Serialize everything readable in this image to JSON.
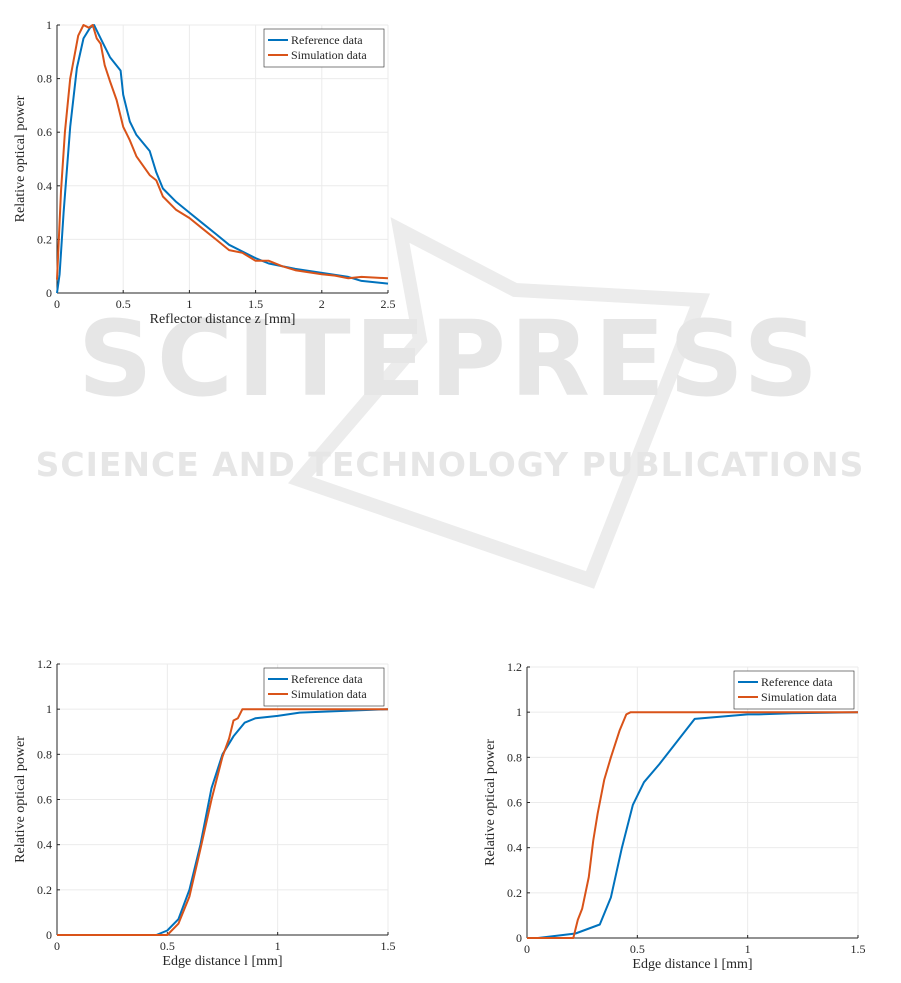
{
  "watermark": {
    "title": "SCITEPRESS",
    "subtitle": "SCIENCE AND TECHNOLOGY PUBLICATIONS"
  },
  "chart_data": [
    {
      "type": "line",
      "xlabel": "Reflector distance z [mm]",
      "ylabel": "Relative optical power",
      "xlim": [
        0,
        2.5
      ],
      "ylim": [
        0,
        1
      ],
      "xticks": [
        0,
        0.5,
        1,
        1.5,
        2,
        2.5
      ],
      "yticks": [
        0,
        0.2,
        0.4,
        0.6,
        0.8,
        1
      ],
      "grid": true,
      "legend": "upper-right",
      "series": [
        {
          "name": "Reference data",
          "color": "#0072bd",
          "x": [
            0,
            0.02,
            0.05,
            0.1,
            0.15,
            0.2,
            0.25,
            0.28,
            0.3,
            0.35,
            0.4,
            0.48,
            0.5,
            0.55,
            0.6,
            0.7,
            0.75,
            0.8,
            0.9,
            1.0,
            1.1,
            1.2,
            1.3,
            1.4,
            1.5,
            1.6,
            1.8,
            2.0,
            2.2,
            2.3,
            2.5
          ],
          "values": [
            0,
            0.07,
            0.3,
            0.62,
            0.84,
            0.95,
            0.99,
            1.0,
            0.98,
            0.93,
            0.88,
            0.83,
            0.74,
            0.64,
            0.59,
            0.53,
            0.45,
            0.39,
            0.34,
            0.3,
            0.26,
            0.22,
            0.18,
            0.155,
            0.13,
            0.11,
            0.09,
            0.075,
            0.06,
            0.045,
            0.035
          ]
        },
        {
          "name": "Simulation data",
          "color": "#d95319",
          "x": [
            0,
            0.03,
            0.06,
            0.1,
            0.13,
            0.16,
            0.2,
            0.24,
            0.27,
            0.3,
            0.33,
            0.36,
            0.4,
            0.45,
            0.5,
            0.55,
            0.6,
            0.7,
            0.75,
            0.8,
            0.9,
            1.0,
            1.1,
            1.2,
            1.3,
            1.4,
            1.5,
            1.6,
            1.7,
            1.8,
            2.0,
            2.1,
            2.2,
            2.3,
            2.5
          ],
          "values": [
            0.05,
            0.38,
            0.6,
            0.8,
            0.88,
            0.96,
            1.0,
            0.99,
            1.0,
            0.95,
            0.93,
            0.85,
            0.79,
            0.72,
            0.62,
            0.57,
            0.51,
            0.44,
            0.42,
            0.36,
            0.31,
            0.28,
            0.24,
            0.2,
            0.16,
            0.15,
            0.12,
            0.12,
            0.1,
            0.085,
            0.07,
            0.065,
            0.055,
            0.06,
            0.055
          ]
        }
      ]
    },
    {
      "type": "line",
      "xlabel": "Edge distance l [mm]",
      "ylabel": "Relative optical power",
      "xlim": [
        0,
        1.5
      ],
      "ylim": [
        0,
        1.2
      ],
      "xticks": [
        0,
        0.5,
        1,
        1.5
      ],
      "yticks": [
        0,
        0.2,
        0.4,
        0.6,
        0.8,
        1,
        1.2
      ],
      "grid": true,
      "legend": "upper-right",
      "series": [
        {
          "name": "Reference data",
          "color": "#0072bd",
          "x": [
            0,
            0.45,
            0.5,
            0.55,
            0.6,
            0.65,
            0.7,
            0.75,
            0.8,
            0.85,
            0.9,
            1.0,
            1.1,
            1.5
          ],
          "values": [
            0,
            0,
            0.02,
            0.07,
            0.2,
            0.4,
            0.65,
            0.8,
            0.88,
            0.94,
            0.96,
            0.97,
            0.985,
            1.0
          ]
        },
        {
          "name": "Simulation data",
          "color": "#d95319",
          "x": [
            0,
            0.5,
            0.55,
            0.6,
            0.65,
            0.7,
            0.75,
            0.78,
            0.8,
            0.82,
            0.84,
            0.85,
            1.0,
            1.5
          ],
          "values": [
            0,
            0,
            0.05,
            0.17,
            0.38,
            0.6,
            0.79,
            0.87,
            0.95,
            0.96,
            1.0,
            1.0,
            1.0,
            1.0
          ]
        }
      ]
    },
    {
      "type": "line",
      "xlabel": "Edge distance l [mm]",
      "ylabel": "Relative optical power",
      "xlim": [
        0,
        1.5
      ],
      "ylim": [
        0,
        1.2
      ],
      "xticks": [
        0,
        0.5,
        1,
        1.5
      ],
      "yticks": [
        0,
        0.2,
        0.4,
        0.6,
        0.8,
        1,
        1.2
      ],
      "grid": true,
      "legend": "upper-right",
      "series": [
        {
          "name": "Reference data",
          "color": "#0072bd",
          "x": [
            0,
            0.05,
            0.22,
            0.33,
            0.38,
            0.43,
            0.48,
            0.53,
            0.6,
            0.76,
            1.0,
            1.05,
            1.2,
            1.5
          ],
          "values": [
            0,
            0,
            0.02,
            0.06,
            0.18,
            0.4,
            0.59,
            0.69,
            0.77,
            0.97,
            0.99,
            0.99,
            0.995,
            1.0
          ]
        },
        {
          "name": "Simulation data",
          "color": "#d95319",
          "x": [
            0,
            0.21,
            0.23,
            0.25,
            0.28,
            0.3,
            0.32,
            0.35,
            0.38,
            0.42,
            0.45,
            0.47,
            0.6,
            1.0,
            1.5
          ],
          "values": [
            0,
            0,
            0.08,
            0.13,
            0.27,
            0.43,
            0.55,
            0.7,
            0.8,
            0.92,
            0.99,
            1.0,
            1.0,
            1.0,
            1.0
          ]
        }
      ]
    }
  ]
}
